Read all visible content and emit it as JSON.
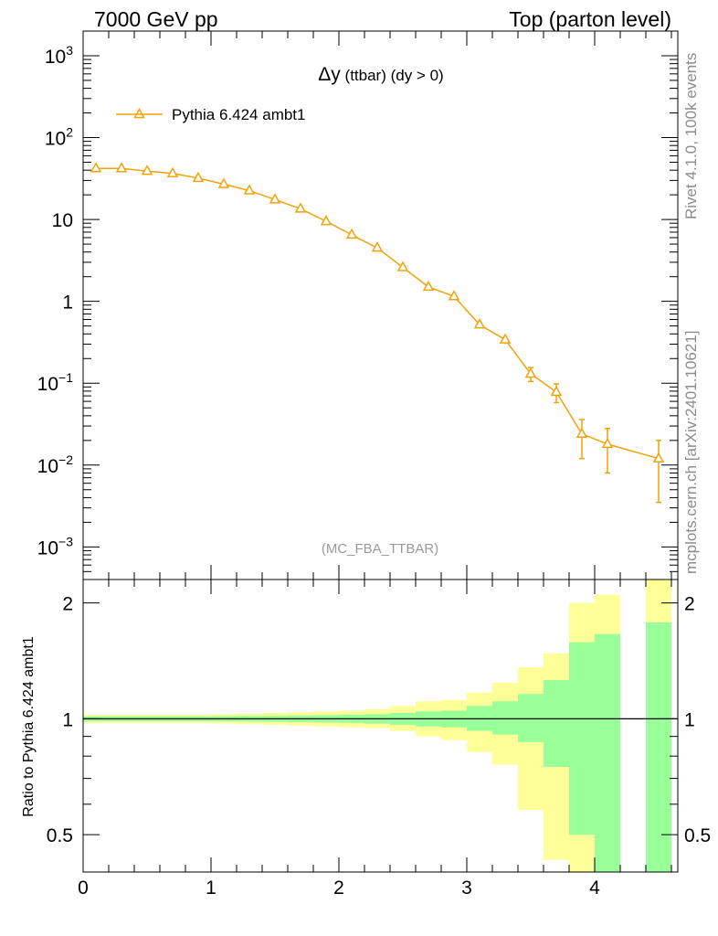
{
  "header": {
    "left": "7000 GeV pp",
    "right": "Top (parton level)"
  },
  "side_text": {
    "rivet": "Rivet 4.1.0,  100k events",
    "mcplots": "mcplots.cern.ch [arXiv:2401.10621]"
  },
  "colors": {
    "series": "#f0a30a",
    "band_outer": "#ffff99",
    "band_inner": "#99ff99",
    "watermark": "#999999"
  },
  "chart_data": [
    {
      "type": "line",
      "title_symbol": "Δy",
      "title_rest": " (ttbar) (dy > 0)",
      "watermark": "(MC_FBA_TTBAR)",
      "yscale": "log",
      "ylim": [
        0.0004,
        2000
      ],
      "xlim": [
        0,
        4.65
      ],
      "ytick_labels": [
        {
          "value": 1000,
          "base": "10",
          "exp": "3"
        },
        {
          "value": 100,
          "base": "10",
          "exp": "2"
        },
        {
          "value": 10,
          "base": "10",
          "exp": ""
        },
        {
          "value": 1,
          "base": "1",
          "exp": ""
        },
        {
          "value": 0.1,
          "base": "10",
          "exp": "−1"
        },
        {
          "value": 0.01,
          "base": "10",
          "exp": "−2"
        },
        {
          "value": 0.001,
          "base": "10",
          "exp": "−3"
        }
      ],
      "legend": "Pythia 6.424 ambt1",
      "series": [
        {
          "name": "Pythia 6.424 ambt1",
          "x": [
            0.1,
            0.3,
            0.5,
            0.7,
            0.9,
            1.1,
            1.3,
            1.5,
            1.7,
            1.9,
            2.1,
            2.3,
            2.5,
            2.7,
            2.9,
            3.1,
            3.3,
            3.5,
            3.7,
            3.9,
            4.1,
            4.5
          ],
          "y": [
            42,
            42,
            39,
            36.5,
            32,
            27,
            22.5,
            17.5,
            13.5,
            9.5,
            6.5,
            4.5,
            2.6,
            1.5,
            1.15,
            0.52,
            0.34,
            0.13,
            0.078,
            0.024,
            0.018,
            0.012
          ],
          "yerr_low": [
            0.5,
            0.5,
            0.5,
            0.5,
            0.4,
            0.35,
            0.3,
            0.25,
            0.2,
            0.15,
            0.1,
            0.08,
            0.06,
            0.04,
            0.04,
            0.03,
            0.04,
            0.025,
            0.02,
            0.012,
            0.01,
            0.0085
          ],
          "yerr_high": [
            0.5,
            0.5,
            0.5,
            0.5,
            0.4,
            0.35,
            0.3,
            0.25,
            0.2,
            0.15,
            0.1,
            0.08,
            0.06,
            0.04,
            0.04,
            0.03,
            0.04,
            0.025,
            0.02,
            0.012,
            0.01,
            0.008
          ]
        }
      ]
    },
    {
      "type": "area",
      "ylabel": "Ratio to Pythia 6.424 ambt1",
      "yscale": "log",
      "ylim": [
        0.4,
        2.3
      ],
      "xlim": [
        0,
        4.65
      ],
      "xtick_labels": [
        "0",
        "1",
        "2",
        "3",
        "4"
      ],
      "ytick_labels": [
        "0.5",
        "1",
        "2"
      ],
      "bins": [
        {
          "x0": 0.0,
          "x1": 0.2,
          "in_lo": 0.985,
          "in_hi": 1.015,
          "out_lo": 0.975,
          "out_hi": 1.025
        },
        {
          "x0": 0.2,
          "x1": 0.4,
          "in_lo": 0.985,
          "in_hi": 1.015,
          "out_lo": 0.975,
          "out_hi": 1.025
        },
        {
          "x0": 0.4,
          "x1": 0.6,
          "in_lo": 0.985,
          "in_hi": 1.015,
          "out_lo": 0.975,
          "out_hi": 1.025
        },
        {
          "x0": 0.6,
          "x1": 0.8,
          "in_lo": 0.985,
          "in_hi": 1.015,
          "out_lo": 0.975,
          "out_hi": 1.025
        },
        {
          "x0": 0.8,
          "x1": 1.0,
          "in_lo": 0.985,
          "in_hi": 1.015,
          "out_lo": 0.975,
          "out_hi": 1.025
        },
        {
          "x0": 1.0,
          "x1": 1.2,
          "in_lo": 0.985,
          "in_hi": 1.016,
          "out_lo": 0.972,
          "out_hi": 1.028
        },
        {
          "x0": 1.2,
          "x1": 1.4,
          "in_lo": 0.983,
          "in_hi": 1.017,
          "out_lo": 0.969,
          "out_hi": 1.031
        },
        {
          "x0": 1.4,
          "x1": 1.6,
          "in_lo": 0.982,
          "in_hi": 1.018,
          "out_lo": 0.965,
          "out_hi": 1.035
        },
        {
          "x0": 1.6,
          "x1": 1.8,
          "in_lo": 0.98,
          "in_hi": 1.02,
          "out_lo": 0.96,
          "out_hi": 1.04
        },
        {
          "x0": 1.8,
          "x1": 2.0,
          "in_lo": 0.978,
          "in_hi": 1.022,
          "out_lo": 0.955,
          "out_hi": 1.045
        },
        {
          "x0": 2.0,
          "x1": 2.2,
          "in_lo": 0.976,
          "in_hi": 1.025,
          "out_lo": 0.95,
          "out_hi": 1.05
        },
        {
          "x0": 2.2,
          "x1": 2.4,
          "in_lo": 0.972,
          "in_hi": 1.028,
          "out_lo": 0.945,
          "out_hi": 1.06
        },
        {
          "x0": 2.4,
          "x1": 2.6,
          "in_lo": 0.965,
          "in_hi": 1.035,
          "out_lo": 0.93,
          "out_hi": 1.08
        },
        {
          "x0": 2.6,
          "x1": 2.8,
          "in_lo": 0.955,
          "in_hi": 1.045,
          "out_lo": 0.9,
          "out_hi": 1.11
        },
        {
          "x0": 2.8,
          "x1": 3.0,
          "in_lo": 0.95,
          "in_hi": 1.05,
          "out_lo": 0.88,
          "out_hi": 1.12
        },
        {
          "x0": 3.0,
          "x1": 3.2,
          "in_lo": 0.93,
          "in_hi": 1.08,
          "out_lo": 0.82,
          "out_hi": 1.17
        },
        {
          "x0": 3.2,
          "x1": 3.4,
          "in_lo": 0.91,
          "in_hi": 1.11,
          "out_lo": 0.76,
          "out_hi": 1.24
        },
        {
          "x0": 3.4,
          "x1": 3.6,
          "in_lo": 0.87,
          "in_hi": 1.16,
          "out_lo": 0.58,
          "out_hi": 1.36
        },
        {
          "x0": 3.6,
          "x1": 3.8,
          "in_lo": 0.75,
          "in_hi": 1.26,
          "out_lo": 0.43,
          "out_hi": 1.48
        },
        {
          "x0": 3.8,
          "x1": 4.0,
          "in_lo": 0.5,
          "in_hi": 1.58,
          "out_lo": 0.38,
          "out_hi": 2.0
        },
        {
          "x0": 4.0,
          "x1": 4.2,
          "in_lo": 0.39,
          "in_hi": 1.66,
          "out_lo": 0.36,
          "out_hi": 2.1
        },
        {
          "x0": 4.4,
          "x1": 4.6,
          "in_lo": 0.38,
          "in_hi": 1.78,
          "out_lo": 0.36,
          "out_hi": 2.35
        }
      ]
    }
  ]
}
